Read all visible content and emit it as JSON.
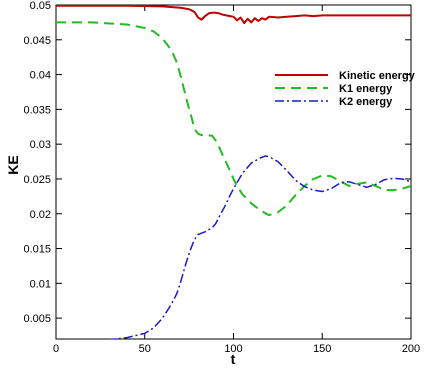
{
  "chart_data": {
    "type": "line",
    "title": "",
    "xlabel": "t",
    "ylabel": "KE",
    "xlim": [
      0,
      200
    ],
    "ylim": [
      0.002,
      0.05
    ],
    "x_ticks": [
      0,
      50,
      100,
      150,
      200
    ],
    "y_ticks": [
      0.005,
      0.01,
      0.015,
      0.02,
      0.025,
      0.03,
      0.035,
      0.04,
      0.045,
      0.05
    ],
    "x_tick_labels": [
      "0",
      "50",
      "100",
      "150",
      "200"
    ],
    "y_tick_labels": [
      "0.005",
      "0.01",
      "0.015",
      "0.02",
      "0.025",
      "0.03",
      "0.035",
      "0.04",
      "0.045",
      "0.05"
    ],
    "grid": false,
    "legend_position": "top-right",
    "series": [
      {
        "name": "Kinetic energy",
        "color": "#c00000",
        "dash": "solid",
        "x": [
          0,
          20,
          40,
          60,
          70,
          75,
          78,
          80,
          82,
          84,
          86,
          88,
          90,
          92,
          94,
          96,
          98,
          100,
          102,
          104,
          106,
          108,
          110,
          112,
          114,
          116,
          118,
          120,
          125,
          130,
          135,
          140,
          145,
          150,
          160,
          170,
          180,
          190,
          200
        ],
        "y": [
          0.0499,
          0.0499,
          0.0499,
          0.0498,
          0.0496,
          0.0494,
          0.049,
          0.0482,
          0.0479,
          0.0484,
          0.0488,
          0.0489,
          0.0489,
          0.0488,
          0.0486,
          0.0485,
          0.0484,
          0.0483,
          0.0478,
          0.0482,
          0.0474,
          0.048,
          0.0475,
          0.0481,
          0.0477,
          0.0481,
          0.0479,
          0.0483,
          0.0482,
          0.0483,
          0.0484,
          0.0485,
          0.0484,
          0.0485,
          0.0485,
          0.0485,
          0.0485,
          0.0485,
          0.0485
        ]
      },
      {
        "name": "K1 energy",
        "color": "#22bb22",
        "dash": "dashed",
        "x": [
          0,
          20,
          40,
          50,
          55,
          60,
          65,
          68,
          70,
          72,
          74,
          76,
          78,
          80,
          82,
          85,
          88,
          90,
          92,
          94,
          96,
          98,
          100,
          102,
          105,
          110,
          115,
          120,
          125,
          130,
          135,
          140,
          145,
          150,
          155,
          160,
          165,
          170,
          175,
          180,
          185,
          190,
          195,
          200
        ],
        "y": [
          0.0475,
          0.0475,
          0.0472,
          0.0467,
          0.0462,
          0.0452,
          0.0435,
          0.0418,
          0.04,
          0.038,
          0.036,
          0.0342,
          0.0322,
          0.0315,
          0.0313,
          0.0313,
          0.0312,
          0.0305,
          0.0295,
          0.0284,
          0.0273,
          0.0262,
          0.025,
          0.024,
          0.0228,
          0.0215,
          0.0205,
          0.0198,
          0.0202,
          0.0212,
          0.0227,
          0.024,
          0.025,
          0.0255,
          0.0254,
          0.0247,
          0.024,
          0.0243,
          0.0245,
          0.024,
          0.0234,
          0.0234,
          0.0236,
          0.024
        ]
      },
      {
        "name": "K2 energy",
        "color": "#1a1acc",
        "dash": "dashdot",
        "x": [
          0,
          20,
          30,
          40,
          50,
          55,
          60,
          65,
          68,
          70,
          72,
          74,
          76,
          78,
          80,
          82,
          84,
          88,
          90,
          92,
          95,
          98,
          100,
          105,
          110,
          115,
          118,
          120,
          125,
          130,
          135,
          140,
          145,
          150,
          155,
          160,
          165,
          170,
          175,
          180,
          185,
          190,
          195,
          200
        ],
        "y": [
          0.0015,
          0.0016,
          0.0019,
          0.0022,
          0.0028,
          0.0036,
          0.005,
          0.007,
          0.0085,
          0.01,
          0.0118,
          0.0135,
          0.015,
          0.0163,
          0.017,
          0.0172,
          0.0174,
          0.018,
          0.0186,
          0.0196,
          0.021,
          0.0226,
          0.0236,
          0.0258,
          0.0273,
          0.028,
          0.0283,
          0.0282,
          0.0275,
          0.0262,
          0.0248,
          0.0239,
          0.0234,
          0.0232,
          0.0236,
          0.0244,
          0.0246,
          0.0242,
          0.0238,
          0.0242,
          0.0249,
          0.0251,
          0.025,
          0.0246
        ]
      }
    ]
  }
}
